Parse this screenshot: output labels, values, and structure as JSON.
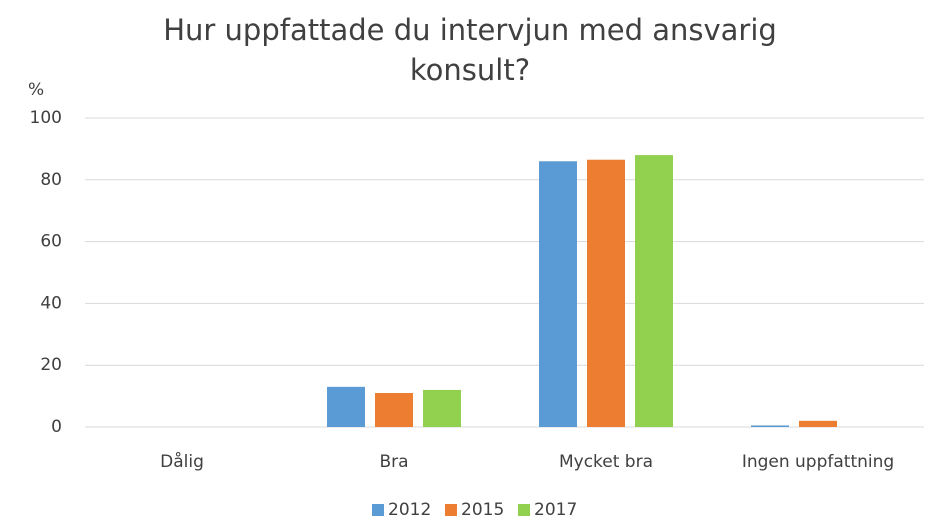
{
  "chart_data": {
    "type": "bar",
    "title": "Hur uppfattade du intervjun med ansvarig konsult?",
    "y_label": "%",
    "categories": [
      "Dålig",
      "Bra",
      "Mycket bra",
      "Ingen uppfattning"
    ],
    "series": [
      {
        "name": "2012",
        "color": "#5b9bd5",
        "values": [
          0,
          13,
          86,
          0.5
        ]
      },
      {
        "name": "2015",
        "color": "#ed7d31",
        "values": [
          0,
          11,
          86.5,
          2
        ]
      },
      {
        "name": "2017",
        "color": "#92d050",
        "values": [
          0,
          12,
          88,
          0
        ]
      }
    ],
    "ylim": [
      0,
      100
    ],
    "yticks": [
      0,
      20,
      40,
      60,
      80,
      100
    ],
    "grid": true,
    "legend": "bottom"
  }
}
